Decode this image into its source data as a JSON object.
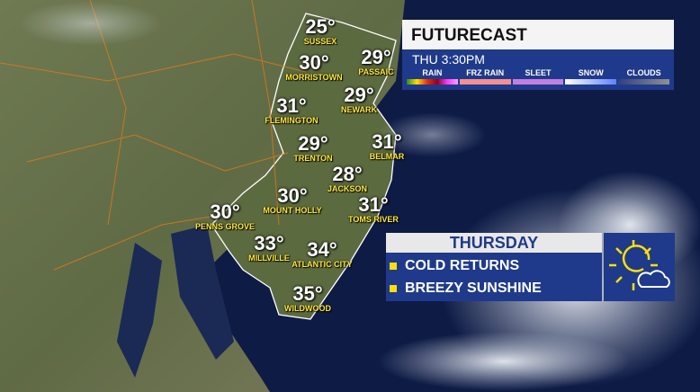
{
  "futurecast": {
    "title": "FUTURECAST",
    "time": "THU  3:30PM",
    "legend": [
      {
        "label": "RAIN"
      },
      {
        "label": "FRZ RAIN"
      },
      {
        "label": "SLEET"
      },
      {
        "label": "SNOW"
      },
      {
        "label": "CLOUDS"
      }
    ]
  },
  "cities": [
    {
      "temp": "25°",
      "name": "SUSSEX"
    },
    {
      "temp": "30°",
      "name": "MORRISTOWN"
    },
    {
      "temp": "29°",
      "name": "PASSAIC"
    },
    {
      "temp": "29°",
      "name": "NEWARK"
    },
    {
      "temp": "31°",
      "name": "FLEMINGTON"
    },
    {
      "temp": "29°",
      "name": "TRENTON"
    },
    {
      "temp": "31°",
      "name": "BELMAR"
    },
    {
      "temp": "28°",
      "name": "JACKSON"
    },
    {
      "temp": "30°",
      "name": "MOUNT HOLLY"
    },
    {
      "temp": "31°",
      "name": "TOMS RIVER"
    },
    {
      "temp": "30°",
      "name": "PENNS GROVE"
    },
    {
      "temp": "33°",
      "name": "MILLVILLE"
    },
    {
      "temp": "34°",
      "name": "ATLANTIC CITY"
    },
    {
      "temp": "35°",
      "name": "WILDWOOD"
    }
  ],
  "thursday": {
    "header": "THURSDAY",
    "bullets": [
      "COLD RETURNS",
      "BREEZY SUNSHINE"
    ],
    "icon": "partly-sunny-icon"
  },
  "colors": {
    "panel": "#1f3a8a",
    "label": "#ffe83a",
    "bullet": "#ffe000"
  }
}
